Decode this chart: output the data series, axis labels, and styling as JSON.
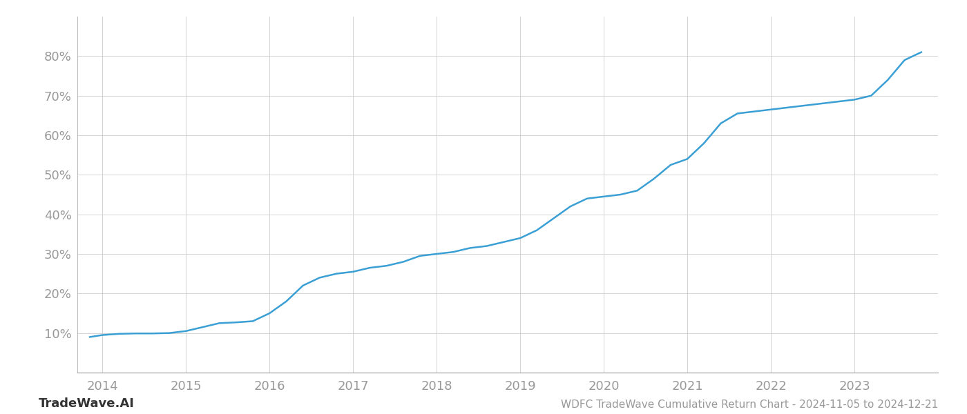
{
  "title": "WDFC TradeWave Cumulative Return Chart - 2024-11-05 to 2024-12-21",
  "watermark": "TradeWave.AI",
  "line_color": "#3a9fd4",
  "line_width": 1.8,
  "background_color": "#ffffff",
  "grid_color": "#cccccc",
  "x_values": [
    2013.85,
    2014.0,
    2014.2,
    2014.4,
    2014.6,
    2014.8,
    2015.0,
    2015.2,
    2015.4,
    2015.6,
    2015.8,
    2016.0,
    2016.2,
    2016.4,
    2016.6,
    2016.8,
    2017.0,
    2017.2,
    2017.4,
    2017.6,
    2017.8,
    2018.0,
    2018.2,
    2018.4,
    2018.6,
    2018.8,
    2019.0,
    2019.2,
    2019.4,
    2019.6,
    2019.8,
    2020.0,
    2020.2,
    2020.4,
    2020.6,
    2020.8,
    2021.0,
    2021.2,
    2021.4,
    2021.6,
    2021.8,
    2022.0,
    2022.2,
    2022.4,
    2022.6,
    2022.8,
    2023.0,
    2023.2,
    2023.4,
    2023.6,
    2023.8
  ],
  "y_values": [
    9.0,
    9.5,
    9.8,
    9.9,
    9.9,
    10.0,
    10.5,
    11.5,
    12.5,
    12.7,
    13.0,
    15.0,
    18.0,
    22.0,
    24.0,
    25.0,
    25.5,
    26.5,
    27.0,
    28.0,
    29.5,
    30.0,
    30.5,
    31.5,
    32.0,
    33.0,
    34.0,
    36.0,
    39.0,
    42.0,
    44.0,
    44.5,
    45.0,
    46.0,
    49.0,
    52.5,
    54.0,
    58.0,
    63.0,
    65.5,
    66.0,
    66.5,
    67.0,
    67.5,
    68.0,
    68.5,
    69.0,
    70.0,
    74.0,
    79.0,
    81.0
  ],
  "xlim": [
    2013.7,
    2024.0
  ],
  "ylim": [
    0,
    90
  ],
  "yticks": [
    10,
    20,
    30,
    40,
    50,
    60,
    70,
    80
  ],
  "xticks": [
    2014,
    2015,
    2016,
    2017,
    2018,
    2019,
    2020,
    2021,
    2022,
    2023
  ],
  "tick_color": "#999999",
  "label_fontsize": 13,
  "title_fontsize": 11,
  "watermark_fontsize": 13
}
